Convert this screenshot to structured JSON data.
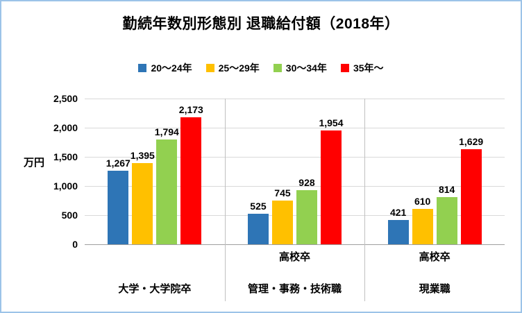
{
  "chart_data": {
    "type": "bar",
    "title": "勤続年数別形態別 退職給付額（2018年）",
    "ylabel": "万円",
    "ylim": [
      0,
      2500
    ],
    "y_ticks": [
      0,
      500,
      1000,
      1500,
      2000,
      2500
    ],
    "y_tick_labels": [
      "0",
      "500",
      "1,000",
      "1,500",
      "2,000",
      "2,500"
    ],
    "grid": true,
    "legend_position": "top",
    "categories": [
      {
        "group": "",
        "label": "大学・大学院卒"
      },
      {
        "group": "高校卒",
        "label": "管理・事務・技術職"
      },
      {
        "group": "高校卒",
        "label": "現業職"
      }
    ],
    "series": [
      {
        "name": "20〜24年",
        "color": "#2E75B6",
        "values": [
          1267,
          525,
          421
        ],
        "labels": [
          "1,267",
          "525",
          "421"
        ]
      },
      {
        "name": "25〜29年",
        "color": "#FFC000",
        "values": [
          1395,
          745,
          610
        ],
        "labels": [
          "1,395",
          "745",
          "610"
        ]
      },
      {
        "name": "30〜34年",
        "color": "#92D050",
        "values": [
          1794,
          928,
          814
        ],
        "labels": [
          "1,794",
          "928",
          "814"
        ]
      },
      {
        "name": "35年〜",
        "color": "#FF0000",
        "values": [
          2173,
          1954,
          1629
        ],
        "labels": [
          "2,173",
          "1,954",
          "1,629"
        ]
      }
    ],
    "colors": {
      "gridline": "#D9D9D9",
      "axis_line": "#9E9E9E",
      "separator": "#C0C0C0",
      "frame_border": "#9CC3E8"
    }
  }
}
